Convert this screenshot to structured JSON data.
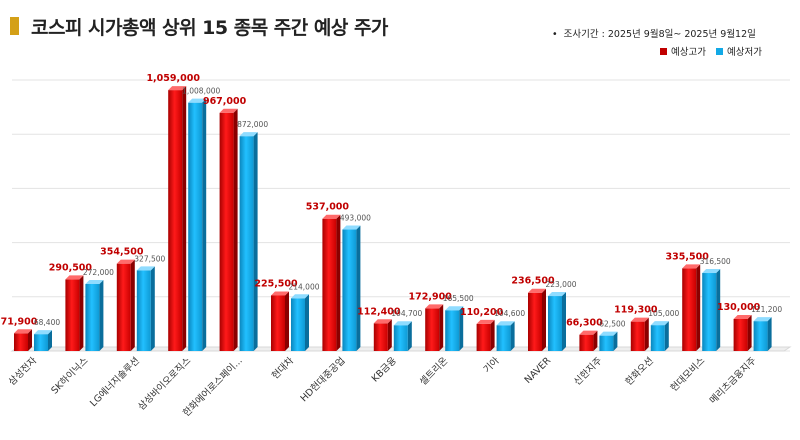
{
  "title": "코스피 시가총액 상위 15 종목 주간 예상 주가",
  "period": "조사기간 : 2025년 9월8일~ 2025년 9월12일",
  "colors": {
    "high": "#e00000",
    "low": "#12a9e6",
    "title_accent": "#d4a017"
  },
  "chart_data": {
    "type": "bar",
    "title": "코스피 시가총액 상위 15 종목 주간 예상 주가",
    "categories": [
      "삼성전자",
      "SK하이닉스",
      "LG에너지솔루션",
      "삼성바이오로직스",
      "한화에어로스페이...",
      "현대차",
      "HD현대중공업",
      "KB금융",
      "셀트리온",
      "기아",
      "NAVER",
      "신한지주",
      "한화오션",
      "현대모비스",
      "메리츠금융지주"
    ],
    "series": [
      {
        "name": "예상고가",
        "values": [
          71900,
          290500,
          354500,
          1059000,
          967000,
          225500,
          537000,
          112400,
          172900,
          110200,
          236500,
          66300,
          119300,
          335500,
          130000
        ],
        "labels": [
          "71,900",
          "290,500",
          "354,500",
          "1,059,000",
          "967,000",
          "225,500",
          "537,000",
          "112,400",
          "172,900",
          "110,200",
          "236,500",
          "66,300",
          "119,300",
          "335,500",
          "130,000"
        ]
      },
      {
        "name": "예상저가",
        "values": [
          68400,
          272000,
          327500,
          1008000,
          872000,
          214000,
          493000,
          104700,
          165500,
          104600,
          223000,
          62500,
          105000,
          316500,
          121200
        ],
        "labels": [
          "68,400",
          "272,000",
          "327,500",
          "1,008,000",
          "872,000",
          "214,000",
          "493,000",
          "104,700",
          "165,500",
          "104,600",
          "223,000",
          "62,500",
          "105,000",
          "316,500",
          "121,200"
        ]
      }
    ],
    "ylim": [
      0,
      1100000
    ],
    "grid": true,
    "legend": "top-right"
  }
}
